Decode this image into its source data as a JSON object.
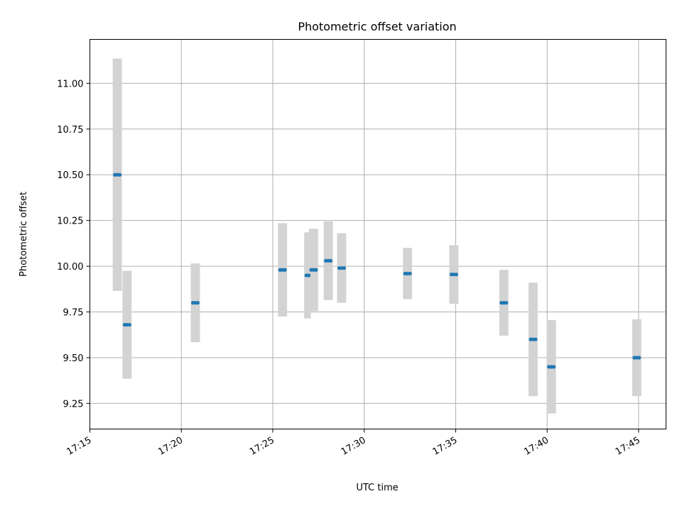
{
  "chart_data": {
    "type": "scatter",
    "title": "Photometric offset variation",
    "xlabel": "UTC time",
    "ylabel": "Photometric offset",
    "xlim": [
      "17:15:00",
      "17:46:30"
    ],
    "ylim": [
      9.11,
      11.24
    ],
    "x_ticks": [
      "17:15",
      "17:20",
      "17:25",
      "17:30",
      "17:35",
      "17:40",
      "17:45"
    ],
    "y_ticks": [
      "9.25",
      "9.50",
      "9.75",
      "10.00",
      "10.25",
      "10.50",
      "10.75",
      "11.00"
    ],
    "grid": true,
    "colors": {
      "marker": "#1f77b4",
      "errorbar": "#d3d3d3"
    },
    "series": [
      {
        "marker": "points-with-vertical-error-bars",
        "points": [
          {
            "times": [
              "17:16:22",
              "17:16:30",
              "17:16:38"
            ],
            "y": 10.5,
            "err": 0.635
          },
          {
            "times": [
              "17:16:54",
              "17:17:02",
              "17:17:10"
            ],
            "y": 9.68,
            "err": 0.295
          },
          {
            "times": [
              "17:20:38",
              "17:20:46",
              "17:20:54"
            ],
            "y": 9.8,
            "err": 0.215
          },
          {
            "times": [
              "17:25:24",
              "17:25:32",
              "17:25:40"
            ],
            "y": 9.98,
            "err": 0.255
          },
          {
            "times": [
              "17:26:50",
              "17:26:58"
            ],
            "y": 9.95,
            "err": 0.235
          },
          {
            "times": [
              "17:27:06",
              "17:27:14",
              "17:27:22"
            ],
            "y": 9.98,
            "err": 0.225
          },
          {
            "times": [
              "17:27:54",
              "17:28:02",
              "17:28:10"
            ],
            "y": 10.03,
            "err": 0.215
          },
          {
            "times": [
              "17:28:38",
              "17:28:46",
              "17:28:54"
            ],
            "y": 9.99,
            "err": 0.19
          },
          {
            "times": [
              "17:32:14",
              "17:32:22",
              "17:32:30"
            ],
            "y": 9.96,
            "err": 0.14
          },
          {
            "times": [
              "17:34:46",
              "17:34:54",
              "17:35:02"
            ],
            "y": 9.955,
            "err": 0.16
          },
          {
            "times": [
              "17:37:30",
              "17:37:38",
              "17:37:46"
            ],
            "y": 9.8,
            "err": 0.18
          },
          {
            "times": [
              "17:39:06",
              "17:39:14",
              "17:39:22"
            ],
            "y": 9.6,
            "err": 0.31
          },
          {
            "times": [
              "17:40:06",
              "17:40:14",
              "17:40:22"
            ],
            "y": 9.45,
            "err": 0.255
          },
          {
            "times": [
              "17:44:46",
              "17:44:54",
              "17:45:02"
            ],
            "y": 9.5,
            "err": 0.21
          }
        ]
      }
    ]
  }
}
